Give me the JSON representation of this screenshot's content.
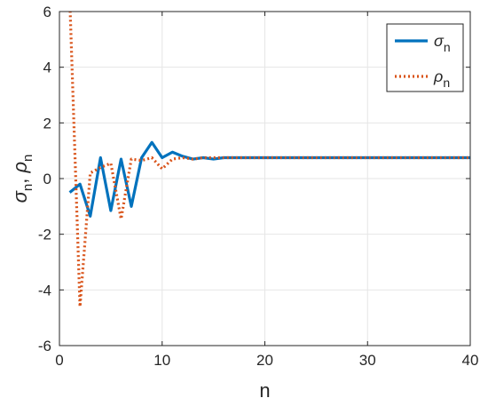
{
  "chart_data": {
    "type": "line",
    "title": "",
    "xlabel": "n",
    "ylabel": "σn, ρn",
    "ylabel_parts": {
      "sym1": "σ",
      "sub1": "n",
      "sep": ", ",
      "sym2": "ρ",
      "sub2": "n"
    },
    "xlim": [
      0,
      40
    ],
    "ylim": [
      -6,
      6
    ],
    "xticks": [
      0,
      10,
      20,
      30,
      40
    ],
    "yticks": [
      -6,
      -4,
      -2,
      0,
      2,
      4,
      6
    ],
    "grid": true,
    "legend_position": "top-right",
    "series": [
      {
        "name": "σn",
        "symbol": "σ",
        "subscript": "n",
        "color": "#0072BD",
        "style": "solid",
        "x": [
          1,
          2,
          3,
          4,
          5,
          6,
          7,
          8,
          9,
          10,
          11,
          12,
          13,
          14,
          15,
          16,
          17,
          18,
          19,
          20,
          21,
          22,
          23,
          24,
          25,
          26,
          27,
          28,
          29,
          30,
          31,
          32,
          33,
          34,
          35,
          36,
          37,
          38,
          39,
          40
        ],
        "y": [
          -0.5,
          -0.2,
          -1.35,
          0.75,
          -1.15,
          0.7,
          -1.0,
          0.75,
          1.3,
          0.75,
          0.95,
          0.8,
          0.7,
          0.75,
          0.7,
          0.75,
          0.75,
          0.75,
          0.75,
          0.75,
          0.75,
          0.75,
          0.75,
          0.75,
          0.75,
          0.75,
          0.75,
          0.75,
          0.75,
          0.75,
          0.75,
          0.75,
          0.75,
          0.75,
          0.75,
          0.75,
          0.75,
          0.75,
          0.75,
          0.75
        ]
      },
      {
        "name": "ρn",
        "symbol": "ρ",
        "subscript": "n",
        "color": "#D95319",
        "style": "dotted",
        "x": [
          1,
          2,
          3,
          4,
          5,
          6,
          7,
          8,
          9,
          10,
          11,
          12,
          13,
          14,
          15,
          16,
          17,
          18,
          19,
          20,
          21,
          22,
          23,
          24,
          25,
          26,
          27,
          28,
          29,
          30,
          31,
          32,
          33,
          34,
          35,
          36,
          37,
          38,
          39,
          40
        ],
        "y": [
          6.5,
          -4.6,
          0.2,
          0.4,
          0.55,
          -1.45,
          0.7,
          0.65,
          0.75,
          0.35,
          0.7,
          0.75,
          0.7,
          0.75,
          0.75,
          0.75,
          0.75,
          0.75,
          0.75,
          0.75,
          0.75,
          0.75,
          0.75,
          0.75,
          0.75,
          0.75,
          0.75,
          0.75,
          0.75,
          0.75,
          0.75,
          0.75,
          0.75,
          0.75,
          0.75,
          0.75,
          0.75,
          0.75,
          0.75,
          0.75
        ]
      }
    ]
  }
}
